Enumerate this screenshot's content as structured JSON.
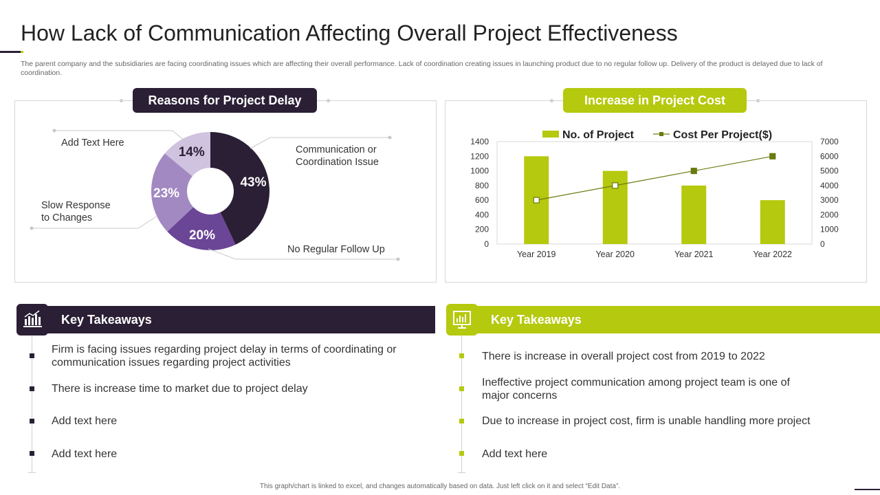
{
  "header": {
    "title": "How Lack of Communication  Affecting  Overall Project Effectiveness",
    "subtitle": "The parent company and the subsidiaries are facing coordinating issues which are affecting their overall performance. Lack of coordination creating issues in launching product due  to no regular follow up. Delivery of the product is delayed due to lack of coordination."
  },
  "colors": {
    "dark": "#2a1f35",
    "green": "#b5c90e",
    "purple_dark": "#2a1f35",
    "purple_mid": "#6b4596",
    "purple_light": "#a289c2",
    "purple_pale": "#cfc3df"
  },
  "left_panel": {
    "heading": "Reasons for Project Delay",
    "labels": {
      "add_text": "Add Text Here",
      "communication": "Communication or\nCoordination Issue",
      "slow_response": "Slow Response\nto Changes",
      "no_follow_up": "No Regular Follow Up"
    }
  },
  "right_panel": {
    "heading": "Increase in Project Cost"
  },
  "chart_data": [
    {
      "type": "pie",
      "title": "Reasons for Project Delay",
      "donut": true,
      "slices": [
        {
          "label": "Communication or Coordination Issue",
          "value": 43,
          "text": "43%",
          "color": "#2a1f35"
        },
        {
          "label": "No Regular Follow Up",
          "value": 20,
          "text": "20%",
          "color": "#6b4596"
        },
        {
          "label": "Slow Response to Changes",
          "value": 23,
          "text": "23%",
          "color": "#a289c2"
        },
        {
          "label": "Add Text Here",
          "value": 14,
          "text": "14%",
          "color": "#cfc3df"
        }
      ]
    },
    {
      "type": "bar",
      "title": "Increase in Project Cost",
      "categories": [
        "Year 2019",
        "Year 2020",
        "Year 2021",
        "Year 2022"
      ],
      "series": [
        {
          "name": "No. of Project",
          "type": "bar",
          "axis": "left",
          "values": [
            1200,
            1000,
            800,
            600
          ],
          "color": "#b5c90e"
        },
        {
          "name": "Cost Per Project($)",
          "type": "line",
          "axis": "right",
          "values": [
            3000,
            4000,
            5000,
            6000
          ],
          "color": "#6b7a10"
        }
      ],
      "ylim_left": [
        0,
        1400
      ],
      "yticks_left": [
        "0",
        "200",
        "400",
        "600",
        "800",
        "1000",
        "1200",
        "1400"
      ],
      "ylim_right": [
        0,
        7000
      ],
      "yticks_right": [
        "0",
        "1000",
        "2000",
        "3000",
        "4000",
        "5000",
        "6000",
        "7000"
      ],
      "legend_position": "top"
    }
  ],
  "takeaways_left": {
    "heading": "Key Takeaways",
    "icon": "bar-chart-icon",
    "items": [
      "Firm is facing issues regarding project delay in terms of coordinating or communication issues regarding project activities",
      "There is increase time to market due to project delay",
      "Add text here",
      "Add text here"
    ]
  },
  "takeaways_right": {
    "heading": "Key Takeaways",
    "icon": "monitor-chart-icon",
    "items": [
      "There is increase in overall project cost from 2019 to 2022",
      "Ineffective  project communication among project team is one of major concerns",
      "Due to increase in project cost, firm is unable handling more project",
      "Add text here"
    ]
  },
  "footer": "This graph/chart is linked to excel, and changes automatically based on data. Just left click on it and select “Edit Data”."
}
